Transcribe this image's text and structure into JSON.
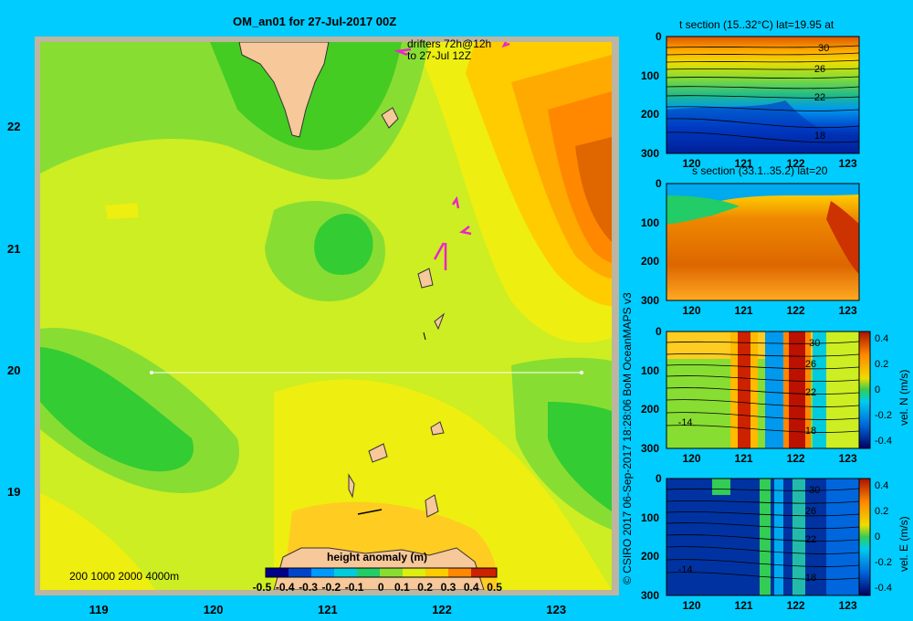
{
  "main_map": {
    "title": "OM_an01 for 27-Jul-2017 00Z",
    "drifters_line1": "drifters 72h@12h",
    "drifters_line2": "to 27-Jul 12Z",
    "bathy_legend": "200  1000  2000  4000m",
    "x_ticks": [
      "119",
      "120",
      "121",
      "122",
      "123"
    ],
    "y_ticks": [
      "22",
      "21",
      "20",
      "19"
    ],
    "section_lat": 20,
    "section_lon_range": [
      119.5,
      123.2
    ],
    "colorbar": {
      "label": "height anomaly  (m)",
      "ticks": [
        "-0.5",
        "-0.4",
        "-0.3",
        "-0.2",
        "-0.1",
        "0",
        "0.1",
        "0.2",
        "0.3",
        "0.4",
        "0.5"
      ]
    },
    "colors": {
      "land": "#f6c89a",
      "frame": "#bdb59f",
      "drifter": "#ee22cc",
      "section": "#ffffff"
    }
  },
  "credit": "© CSIRO 2017    06-Sep-2017 18:28:06 BoM OceanMAPS v3",
  "panels": [
    {
      "title": "t section (15..32°C) lat=19.95 at",
      "colorbar_label": "",
      "colorbar_ticks": [],
      "contour_labels": [
        "30",
        "26",
        "22",
        "18"
      ],
      "x_ticks": [
        "120",
        "121",
        "122",
        "123"
      ],
      "y_ticks": [
        "0",
        "100",
        "200",
        "300"
      ]
    },
    {
      "title": "s section (33.1..35.2) lat=20",
      "colorbar_label": "",
      "colorbar_ticks": [],
      "contour_labels": [],
      "x_ticks": [
        "120",
        "121",
        "122",
        "123"
      ],
      "y_ticks": [
        "0",
        "100",
        "200",
        "300"
      ]
    },
    {
      "title": "",
      "colorbar_label": "vel. N  (m/s)",
      "colorbar_ticks": [
        "0.4",
        "0.2",
        "0",
        "-0.2",
        "-0.4"
      ],
      "contour_labels": [
        "30",
        "26",
        "22",
        "18",
        "-14"
      ],
      "x_ticks": [
        "120",
        "121",
        "122",
        "123"
      ],
      "y_ticks": [
        "0",
        "100",
        "200",
        "300"
      ]
    },
    {
      "title": "",
      "colorbar_label": "vel. E  (m/s)",
      "colorbar_ticks": [
        "0.4",
        "0.2",
        "0",
        "-0.2",
        "-0.4"
      ],
      "contour_labels": [
        "30",
        "26",
        "22",
        "18",
        "-14"
      ],
      "x_ticks": [
        "120",
        "121",
        "122",
        "123"
      ],
      "y_ticks": [
        "0",
        "100",
        "200",
        "300"
      ]
    }
  ],
  "chart_data": [
    {
      "type": "heatmap",
      "title": "OM_an01 for 27-Jul-2017 00Z",
      "variable": "height anomaly  (m)",
      "xlim": [
        118.5,
        123.5
      ],
      "ylim": [
        18.2,
        22.7
      ],
      "clim": [
        -0.5,
        0.5
      ],
      "features": {
        "anticyclone_east": {
          "lon": 123.3,
          "lat": 21.4,
          "value": 0.45
        },
        "cyclone_west": {
          "lon": 119.4,
          "lat": 19.7,
          "value": 0.0
        },
        "low_center": {
          "lon": 121.1,
          "lat": 21.1,
          "value": 0.0
        }
      }
    },
    {
      "type": "heatmap",
      "title": "t section (15..32°C) lat=19.95 at",
      "xlim": [
        119.5,
        123.2
      ],
      "ylim": [
        300,
        0
      ],
      "clim": [
        15,
        32
      ],
      "contour_levels": [
        18,
        22,
        26,
        30
      ]
    },
    {
      "type": "heatmap",
      "title": "s section (33.1..35.2) lat=20",
      "xlim": [
        119.5,
        123.2
      ],
      "ylim": [
        300,
        0
      ],
      "clim": [
        33.1,
        35.2
      ]
    },
    {
      "type": "heatmap",
      "variable": "vel. N  (m/s)",
      "xlim": [
        119.5,
        123.2
      ],
      "ylim": [
        300,
        0
      ],
      "clim": [
        -0.4,
        0.4
      ],
      "bands": [
        {
          "lon": 120.9,
          "value": 0.35
        },
        {
          "lon": 121.4,
          "value": -0.3
        },
        {
          "lon": 122.0,
          "value": 0.4
        },
        {
          "lon": 122.4,
          "value": -0.25
        }
      ]
    },
    {
      "type": "heatmap",
      "variable": "vel. E  (m/s)",
      "xlim": [
        119.5,
        123.2
      ],
      "ylim": [
        300,
        0
      ],
      "clim": [
        -0.4,
        0.4
      ],
      "bands": [
        {
          "lon": 121.6,
          "value": 0.1
        },
        {
          "lon": 122.0,
          "value": -0.05
        }
      ]
    }
  ]
}
